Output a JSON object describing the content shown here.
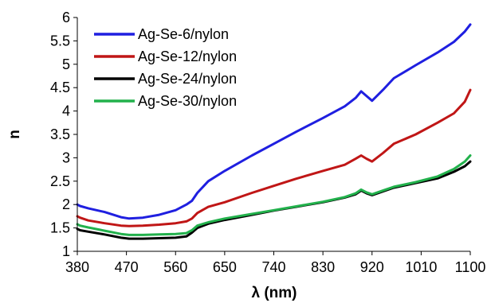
{
  "chart_data": {
    "type": "line",
    "title": "",
    "xlabel": "λ (nm)",
    "ylabel": "n",
    "xlim": [
      380,
      1100
    ],
    "ylim": [
      1,
      6
    ],
    "xticks": [
      380,
      470,
      560,
      650,
      740,
      830,
      920,
      1010,
      1100
    ],
    "yticks": [
      1,
      1.5,
      2,
      2.5,
      3,
      3.5,
      4,
      4.5,
      5,
      5.5,
      6
    ],
    "grid": false,
    "legend_position": "top-left",
    "series": [
      {
        "name": "Ag-Se-6/nylon",
        "color": "#1f1fe0",
        "x": [
          380,
          385,
          400,
          430,
          460,
          475,
          500,
          530,
          560,
          580,
          590,
          600,
          620,
          650,
          700,
          740,
          780,
          830,
          870,
          890,
          900,
          910,
          920,
          940,
          960,
          1000,
          1040,
          1070,
          1090,
          1100
        ],
        "y": [
          2.0,
          1.97,
          1.92,
          1.84,
          1.73,
          1.7,
          1.72,
          1.78,
          1.88,
          2.0,
          2.08,
          2.25,
          2.5,
          2.72,
          3.05,
          3.3,
          3.55,
          3.85,
          4.1,
          4.28,
          4.42,
          4.32,
          4.22,
          4.45,
          4.7,
          4.98,
          5.25,
          5.48,
          5.7,
          5.85
        ]
      },
      {
        "name": "Ag-Se-12/nylon",
        "color": "#c01616",
        "x": [
          380,
          385,
          400,
          430,
          460,
          475,
          500,
          530,
          560,
          580,
          590,
          600,
          620,
          650,
          700,
          740,
          780,
          830,
          870,
          890,
          900,
          910,
          920,
          940,
          960,
          1000,
          1040,
          1070,
          1090,
          1100
        ],
        "y": [
          1.75,
          1.72,
          1.66,
          1.6,
          1.55,
          1.54,
          1.55,
          1.57,
          1.6,
          1.64,
          1.7,
          1.82,
          1.95,
          2.05,
          2.25,
          2.4,
          2.55,
          2.72,
          2.85,
          2.98,
          3.05,
          2.98,
          2.92,
          3.1,
          3.3,
          3.5,
          3.75,
          3.95,
          4.2,
          4.45
        ]
      },
      {
        "name": "Ag-Se-24/nylon",
        "color": "#000000",
        "x": [
          380,
          385,
          400,
          430,
          460,
          475,
          500,
          530,
          560,
          580,
          590,
          600,
          620,
          650,
          700,
          740,
          780,
          830,
          870,
          890,
          900,
          910,
          920,
          940,
          960,
          1000,
          1040,
          1070,
          1090,
          1100
        ],
        "y": [
          1.48,
          1.45,
          1.42,
          1.36,
          1.29,
          1.27,
          1.27,
          1.28,
          1.29,
          1.32,
          1.4,
          1.5,
          1.59,
          1.67,
          1.78,
          1.87,
          1.95,
          2.05,
          2.15,
          2.22,
          2.3,
          2.24,
          2.2,
          2.28,
          2.36,
          2.46,
          2.56,
          2.7,
          2.82,
          2.92
        ]
      },
      {
        "name": "Ag-Se-30/nylon",
        "color": "#22b14c",
        "x": [
          380,
          385,
          400,
          430,
          460,
          475,
          500,
          530,
          560,
          580,
          590,
          600,
          620,
          650,
          700,
          740,
          780,
          830,
          870,
          890,
          900,
          910,
          920,
          940,
          960,
          1000,
          1040,
          1070,
          1090,
          1100
        ],
        "y": [
          1.58,
          1.55,
          1.51,
          1.44,
          1.37,
          1.35,
          1.35,
          1.36,
          1.37,
          1.39,
          1.45,
          1.55,
          1.62,
          1.7,
          1.8,
          1.88,
          1.96,
          2.06,
          2.16,
          2.24,
          2.32,
          2.26,
          2.22,
          2.3,
          2.38,
          2.48,
          2.6,
          2.76,
          2.92,
          3.05
        ]
      }
    ]
  }
}
